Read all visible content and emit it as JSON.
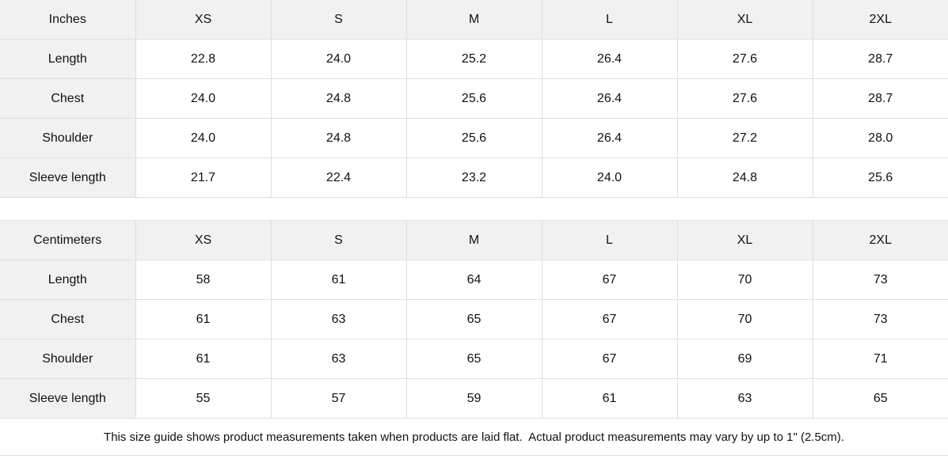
{
  "tables": [
    {
      "unit": "Inches",
      "sizes": [
        "XS",
        "S",
        "M",
        "L",
        "XL",
        "2XL"
      ],
      "rows": [
        {
          "label": "Length",
          "values": [
            "22.8",
            "24.0",
            "25.2",
            "26.4",
            "27.6",
            "28.7"
          ]
        },
        {
          "label": "Chest",
          "values": [
            "24.0",
            "24.8",
            "25.6",
            "26.4",
            "27.6",
            "28.7"
          ]
        },
        {
          "label": "Shoulder",
          "values": [
            "24.0",
            "24.8",
            "25.6",
            "26.4",
            "27.2",
            "28.0"
          ]
        },
        {
          "label": "Sleeve length",
          "values": [
            "21.7",
            "22.4",
            "23.2",
            "24.0",
            "24.8",
            "25.6"
          ]
        }
      ]
    },
    {
      "unit": "Centimeters",
      "sizes": [
        "XS",
        "S",
        "M",
        "L",
        "XL",
        "2XL"
      ],
      "rows": [
        {
          "label": "Length",
          "values": [
            "58",
            "61",
            "64",
            "67",
            "70",
            "73"
          ]
        },
        {
          "label": "Chest",
          "values": [
            "61",
            "63",
            "65",
            "67",
            "70",
            "73"
          ]
        },
        {
          "label": "Shoulder",
          "values": [
            "61",
            "63",
            "65",
            "67",
            "69",
            "71"
          ]
        },
        {
          "label": "Sleeve length",
          "values": [
            "55",
            "57",
            "59",
            "61",
            "63",
            "65"
          ]
        }
      ]
    }
  ],
  "footer": {
    "note": "This size guide shows product measurements taken when products are laid flat.  Actual product measurements may vary by up to 1\" (2.5cm)."
  },
  "colors": {
    "header_bg": "#f1f1f1",
    "border": "#dedede",
    "text": "#111111"
  }
}
